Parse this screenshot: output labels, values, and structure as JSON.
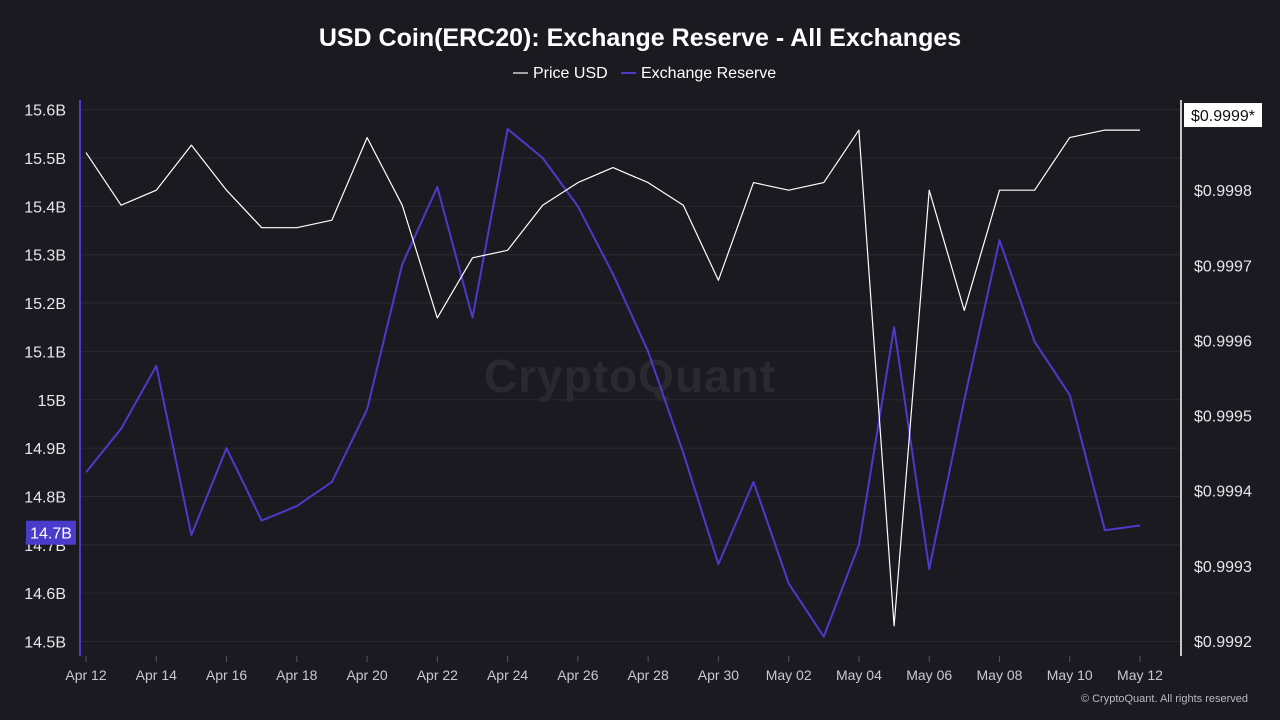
{
  "chart_data": {
    "type": "line",
    "title": "USD Coin(ERC20): Exchange Reserve - All Exchanges",
    "x": [
      "Apr 12",
      "Apr 13",
      "Apr 14",
      "Apr 15",
      "Apr 16",
      "Apr 17",
      "Apr 18",
      "Apr 19",
      "Apr 20",
      "Apr 21",
      "Apr 22",
      "Apr 23",
      "Apr 24",
      "Apr 25",
      "Apr 26",
      "Apr 27",
      "Apr 28",
      "Apr 29",
      "Apr 30",
      "May 01",
      "May 02",
      "May 03",
      "May 04",
      "May 05",
      "May 06",
      "May 07",
      "May 08",
      "May 09",
      "May 10",
      "May 11",
      "May 12"
    ],
    "x_tick_labels": [
      "Apr 12",
      "Apr 14",
      "Apr 16",
      "Apr 18",
      "Apr 20",
      "Apr 22",
      "Apr 24",
      "Apr 26",
      "Apr 28",
      "Apr 30",
      "May 02",
      "May 04",
      "May 06",
      "May 08",
      "May 10",
      "May 12"
    ],
    "series": [
      {
        "name": "Price USD",
        "axis": "right",
        "color": "#ffffff",
        "values": [
          0.99985,
          0.99978,
          0.9998,
          0.99986,
          0.9998,
          0.99975,
          0.99975,
          0.99976,
          0.99987,
          0.99978,
          0.99963,
          0.99971,
          0.99972,
          0.99978,
          0.99981,
          0.99983,
          0.99981,
          0.99978,
          0.99968,
          0.99981,
          0.9998,
          0.99981,
          0.99988,
          0.99922,
          0.9998,
          0.99964,
          0.9998,
          0.9998,
          0.99987,
          0.99988,
          0.99988
        ]
      },
      {
        "name": "Exchange Reserve",
        "axis": "left",
        "color": "#4b3bcb",
        "values": [
          14.85,
          14.94,
          15.07,
          14.72,
          14.9,
          14.75,
          14.78,
          14.83,
          14.98,
          15.28,
          15.44,
          15.17,
          15.56,
          15.5,
          15.4,
          15.26,
          15.1,
          14.89,
          14.66,
          14.83,
          14.62,
          14.51,
          14.7,
          15.15,
          14.65,
          15.0,
          15.33,
          15.12,
          15.01,
          14.73,
          14.74
        ]
      }
    ],
    "y_left": {
      "ylim": [
        14.47,
        15.62
      ],
      "ticks": [
        {
          "value": 15.6,
          "label": "15.6B"
        },
        {
          "value": 15.5,
          "label": "15.5B"
        },
        {
          "value": 15.4,
          "label": "15.4B"
        },
        {
          "value": 15.3,
          "label": "15.3B"
        },
        {
          "value": 15.2,
          "label": "15.2B"
        },
        {
          "value": 15.1,
          "label": "15.1B"
        },
        {
          "value": 15.0,
          "label": "15B"
        },
        {
          "value": 14.9,
          "label": "14.9B"
        },
        {
          "value": 14.8,
          "label": "14.8B"
        },
        {
          "value": 14.7,
          "label": "14.7B"
        },
        {
          "value": 14.6,
          "label": "14.6B"
        },
        {
          "value": 14.5,
          "label": "14.5B"
        }
      ],
      "current_label": "14.7B",
      "current_value": 14.725
    },
    "y_right": {
      "ylim": [
        0.99918,
        0.99992
      ],
      "ticks": [
        {
          "value": 0.9998,
          "label": "$0.9998"
        },
        {
          "value": 0.9997,
          "label": "$0.9997"
        },
        {
          "value": 0.9996,
          "label": "$0.9996"
        },
        {
          "value": 0.9995,
          "label": "$0.9995"
        },
        {
          "value": 0.9994,
          "label": "$0.9994"
        },
        {
          "value": 0.9993,
          "label": "$0.9993"
        },
        {
          "value": 0.9992,
          "label": "$0.9992"
        }
      ],
      "current_label": "$0.9999*",
      "current_value": 0.9999
    },
    "legend": {
      "placement": "top-center"
    },
    "grid": true,
    "watermark": "CryptoQuant",
    "copyright": "© CryptoQuant. All rights reserved"
  }
}
